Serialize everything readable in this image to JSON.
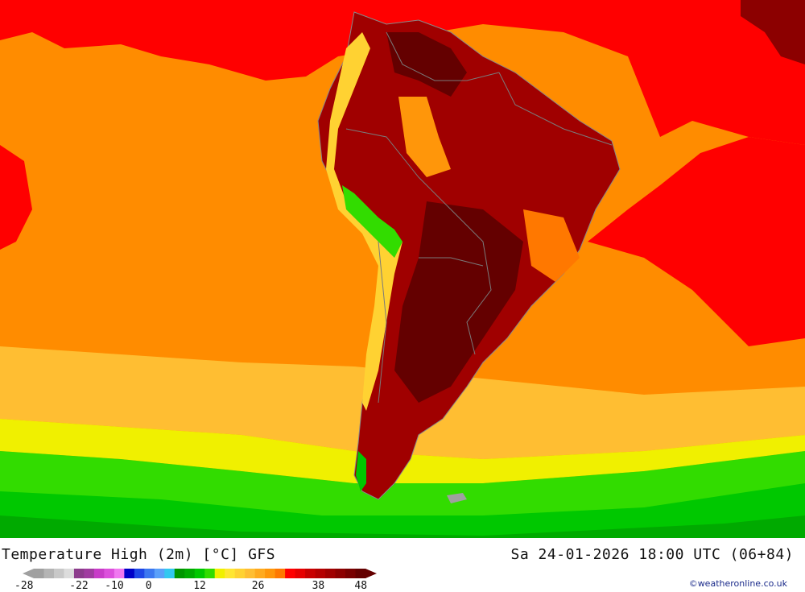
{
  "title": "Temperature High (2m) [°C] GFS",
  "datetime": "Sa 24-01-2026 18:00 UTC (06+84)",
  "credit": "©weatheronline.co.uk",
  "legend": {
    "colors": [
      "#a0a0a0",
      "#b4b4b4",
      "#c8c8c8",
      "#dcdcdc",
      "#8c3c8c",
      "#a03ca0",
      "#c83cc8",
      "#dc50dc",
      "#f078f0",
      "#0000c8",
      "#1e46e6",
      "#3c78f0",
      "#5aa0fa",
      "#32c8f0",
      "#009600",
      "#00aa00",
      "#00c800",
      "#32dc00",
      "#f0f000",
      "#ffe632",
      "#ffd232",
      "#ffbe32",
      "#ffaa1e",
      "#ff960a",
      "#ff7800",
      "#ff0000",
      "#e60000",
      "#c80000",
      "#b40000",
      "#a00000",
      "#8c0000",
      "#780000",
      "#640000"
    ],
    "ticks": [
      "-28",
      "-22",
      "-10",
      "0",
      "12",
      "26",
      "38",
      "48"
    ]
  }
}
